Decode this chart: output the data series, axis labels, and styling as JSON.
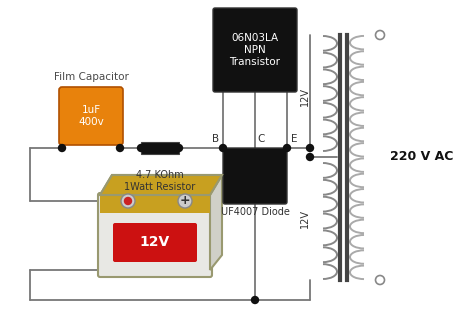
{
  "bg_color": "#ffffff",
  "transistor": {
    "body_color": "#111111",
    "label": "06N03LA\nNPN\nTransistor",
    "font_size": 7.5
  },
  "capacitor": {
    "body_color": "#e8820c",
    "label": "1uF\n400v",
    "outer_label": "Film Capacitor",
    "outer_label_color": "#4a4a4a",
    "outer_font_size": 7.5,
    "font_size": 7.5
  },
  "resistor": {
    "body_color": "#111111",
    "label": "4.7 KOhm\n1Watt Resistor",
    "font_size": 7.0
  },
  "diode": {
    "body_color": "#111111",
    "label": "UF4007 Diode",
    "font_size": 7.0
  },
  "battery": {
    "label": "12V",
    "font_size": 10
  },
  "transformer": {
    "label": "220 V AC",
    "label_font_size": 9
  },
  "wire_color": "#777777",
  "dot_color": "#111111",
  "label_bce": "#333333",
  "font_size_bce": 7.5,
  "v12_label_color": "#333333",
  "v12_font_size": 7.0
}
